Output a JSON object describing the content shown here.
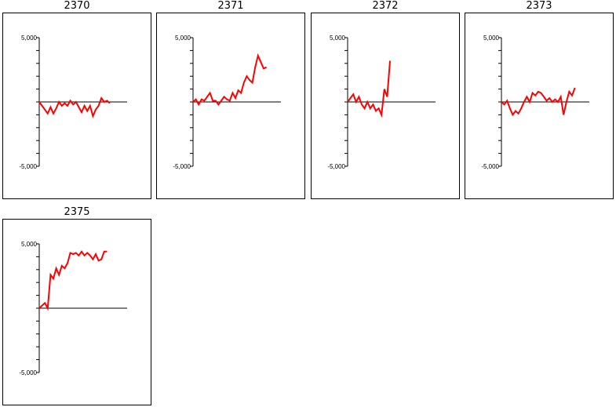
{
  "chart_data": [
    {
      "type": "line",
      "title": "2370",
      "ylim": [
        -5000,
        5000
      ],
      "ytick_labels": [
        "5,000",
        "-5,000"
      ],
      "line_color": "#ff0000",
      "axis_color": "#000000",
      "series": [
        {
          "values": [
            0,
            -300,
            -600,
            -900,
            -400,
            -900,
            -500,
            0,
            -300,
            -100,
            -300,
            100,
            -200,
            0,
            -400,
            -800,
            -300,
            -700,
            -300,
            -1100,
            -600,
            -300,
            300,
            0,
            100,
            -100
          ]
        }
      ]
    },
    {
      "type": "line",
      "title": "2371",
      "ylim": [
        -5000,
        5000
      ],
      "ytick_labels": [
        "5,000",
        "-5,000"
      ],
      "line_color": "#ff0000",
      "axis_color": "#000000",
      "series": [
        {
          "values": [
            0,
            200,
            -200,
            200,
            100,
            400,
            700,
            100,
            100,
            -200,
            100,
            400,
            200,
            100,
            700,
            300,
            900,
            700,
            1500,
            2000,
            1700,
            1500,
            2700,
            3600,
            3100,
            2600,
            2700
          ]
        }
      ]
    },
    {
      "type": "line",
      "title": "2372",
      "ylim": [
        -5000,
        5000
      ],
      "ytick_labels": [
        "5,000",
        "-5,000"
      ],
      "line_color": "#ff0000",
      "axis_color": "#000000",
      "series": [
        {
          "values": [
            0,
            300,
            600,
            0,
            400,
            -200,
            -500,
            0,
            -500,
            -200,
            -700,
            -500,
            -1000,
            1000,
            400,
            3200
          ]
        }
      ]
    },
    {
      "type": "line",
      "title": "2373",
      "ylim": [
        -5000,
        5000
      ],
      "ytick_labels": [
        "5,000",
        "-5,000"
      ],
      "line_color": "#ff0000",
      "axis_color": "#000000",
      "series": [
        {
          "values": [
            0,
            -200,
            100,
            -500,
            -1000,
            -700,
            -900,
            -500,
            0,
            400,
            0,
            700,
            500,
            800,
            700,
            400,
            100,
            300,
            0,
            200,
            0,
            400,
            -1000,
            0,
            800,
            500,
            1100
          ]
        }
      ]
    },
    {
      "type": "line",
      "title": "2375",
      "ylim": [
        -5000,
        5000
      ],
      "ytick_labels": [
        "5,000",
        "-5,000"
      ],
      "line_color": "#ff0000",
      "axis_color": "#000000",
      "series": [
        {
          "values": [
            0,
            200,
            400,
            0,
            2600,
            2300,
            3100,
            2600,
            3300,
            3100,
            3500,
            4300,
            4200,
            4300,
            4100,
            4400,
            4100,
            4300,
            4100,
            3800,
            4200,
            3700,
            3800,
            4400,
            4400
          ]
        }
      ]
    }
  ]
}
